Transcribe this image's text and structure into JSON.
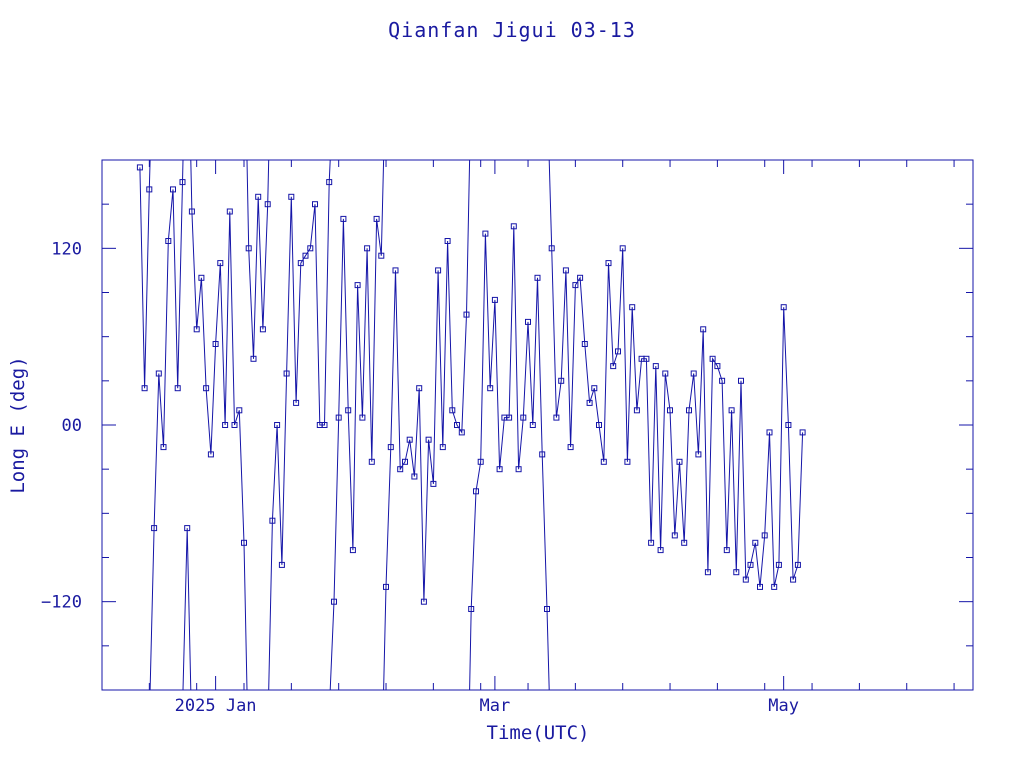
{
  "chart_data": {
    "type": "line",
    "title": "Qianfan Jigui 03-13",
    "xlabel": "Time(UTC)",
    "ylabel": "Long E (deg)",
    "x_unit": "date",
    "xlim": [
      "2024-12-08",
      "2025-06-10"
    ],
    "ylim": [
      -180,
      180
    ],
    "x_ticks": [
      {
        "date": "2025-01-01",
        "label": "2025 Jan"
      },
      {
        "date": "2025-03-01",
        "label": "Mar"
      },
      {
        "date": "2025-05-01",
        "label": "May"
      }
    ],
    "y_ticks": [
      {
        "value": 120,
        "label": "120"
      },
      {
        "value": 0,
        "label": "00"
      },
      {
        "value": -120,
        "label": "−120"
      }
    ],
    "grid": false,
    "legend": "none",
    "line_color": "#1515a8",
    "marker": "square",
    "series": [
      {
        "x": [
          "2024-12-16",
          "2024-12-17",
          "2024-12-18",
          "2024-12-19",
          "2024-12-20",
          "2024-12-21",
          "2024-12-22",
          "2024-12-23",
          "2024-12-24",
          "2024-12-25",
          "2024-12-26",
          "2024-12-27",
          "2024-12-28",
          "2024-12-29",
          "2024-12-30",
          "2024-12-31",
          "2025-01-01",
          "2025-01-02",
          "2025-01-03",
          "2025-01-04",
          "2025-01-05",
          "2025-01-06",
          "2025-01-07",
          "2025-01-08",
          "2025-01-09",
          "2025-01-10",
          "2025-01-11",
          "2025-01-12",
          "2025-01-13",
          "2025-01-14",
          "2025-01-15",
          "2025-01-16",
          "2025-01-17",
          "2025-01-18",
          "2025-01-19",
          "2025-01-20",
          "2025-01-21",
          "2025-01-22",
          "2025-01-23",
          "2025-01-24",
          "2025-01-25",
          "2025-01-26",
          "2025-01-27",
          "2025-01-28",
          "2025-01-29",
          "2025-01-30",
          "2025-01-31",
          "2025-02-01",
          "2025-02-02",
          "2025-02-03",
          "2025-02-04",
          "2025-02-05",
          "2025-02-06",
          "2025-02-07",
          "2025-02-08",
          "2025-02-09",
          "2025-02-10",
          "2025-02-11",
          "2025-02-12",
          "2025-02-13",
          "2025-02-14",
          "2025-02-15",
          "2025-02-16",
          "2025-02-17",
          "2025-02-18",
          "2025-02-19",
          "2025-02-20",
          "2025-02-21",
          "2025-02-22",
          "2025-02-23",
          "2025-02-24",
          "2025-02-25",
          "2025-02-26",
          "2025-02-27",
          "2025-02-28",
          "2025-03-01",
          "2025-03-02",
          "2025-03-03",
          "2025-03-04",
          "2025-03-05",
          "2025-03-06",
          "2025-03-07",
          "2025-03-08",
          "2025-03-09",
          "2025-03-10",
          "2025-03-11",
          "2025-03-12",
          "2025-03-13",
          "2025-03-14",
          "2025-03-15",
          "2025-03-16",
          "2025-03-17",
          "2025-03-18",
          "2025-03-19",
          "2025-03-20",
          "2025-03-21",
          "2025-03-22",
          "2025-03-23",
          "2025-03-24",
          "2025-03-25",
          "2025-03-26",
          "2025-03-27",
          "2025-03-28",
          "2025-03-29",
          "2025-03-30",
          "2025-03-31",
          "2025-04-01",
          "2025-04-02",
          "2025-04-03",
          "2025-04-04",
          "2025-04-05",
          "2025-04-06",
          "2025-04-07",
          "2025-04-08",
          "2025-04-09",
          "2025-04-10",
          "2025-04-11",
          "2025-04-12",
          "2025-04-13",
          "2025-04-14",
          "2025-04-15",
          "2025-04-16",
          "2025-04-17",
          "2025-04-18",
          "2025-04-19",
          "2025-04-20",
          "2025-04-21",
          "2025-04-22",
          "2025-04-23",
          "2025-04-24",
          "2025-04-25",
          "2025-04-26",
          "2025-04-27",
          "2025-04-28",
          "2025-04-29",
          "2025-04-30",
          "2025-05-01",
          "2025-05-02",
          "2025-05-03",
          "2025-05-04",
          "2025-05-05"
        ],
        "y": [
          175,
          25,
          160,
          -70,
          35,
          -15,
          125,
          160,
          25,
          165,
          -70,
          145,
          65,
          100,
          25,
          -20,
          55,
          110,
          0,
          145,
          0,
          10,
          -80,
          120,
          45,
          155,
          65,
          150,
          -65,
          0,
          -95,
          35,
          155,
          15,
          110,
          115,
          120,
          150,
          0,
          0,
          165,
          -120,
          5,
          140,
          10,
          -85,
          95,
          5,
          120,
          -25,
          140,
          115,
          -110,
          -15,
          105,
          -30,
          -25,
          -10,
          -35,
          25,
          -120,
          -10,
          -40,
          105,
          -15,
          125,
          10,
          0,
          -5,
          75,
          -125,
          -45,
          -25,
          130,
          25,
          85,
          -30,
          5,
          5,
          135,
          -30,
          5,
          70,
          0,
          100,
          -20,
          -125,
          120,
          5,
          30,
          105,
          -15,
          95,
          100,
          55,
          15,
          25,
          0,
          -25,
          110,
          40,
          50,
          120,
          -25,
          80,
          10,
          45,
          45,
          -80,
          40,
          -85,
          35,
          10,
          -75,
          -25,
          -80,
          10,
          35,
          -20,
          65,
          -100,
          45,
          40,
          30,
          -85,
          10,
          -100,
          30,
          -105,
          -95,
          -80,
          -110,
          -75,
          -5,
          -110,
          -95,
          80,
          0,
          -105,
          -95,
          -5
        ]
      }
    ]
  }
}
